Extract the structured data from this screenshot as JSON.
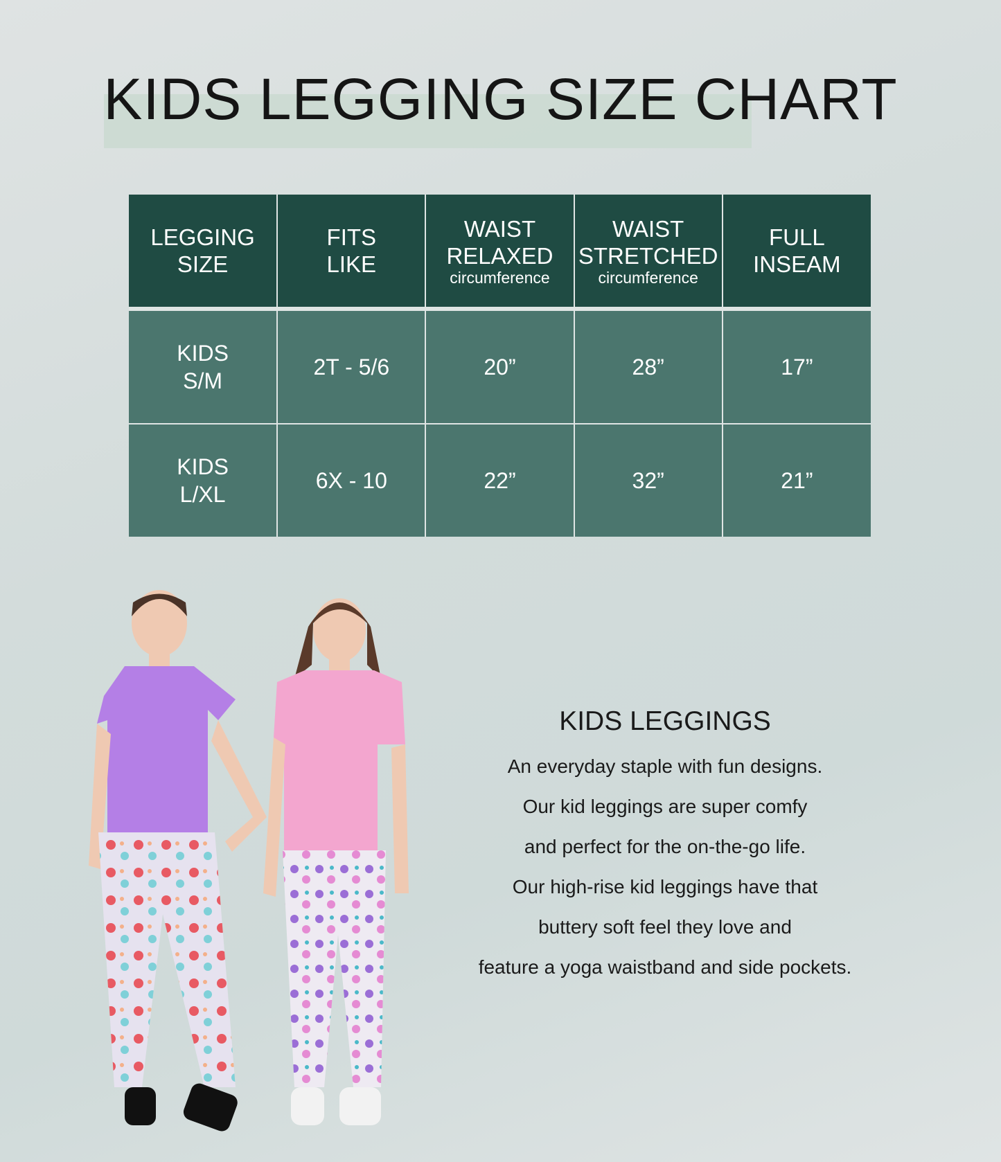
{
  "title": "KIDS LEGGING SIZE CHART",
  "table": {
    "headers": [
      {
        "main1": "LEGGING",
        "main2": "SIZE",
        "sub": ""
      },
      {
        "main1": "FITS",
        "main2": "LIKE",
        "sub": ""
      },
      {
        "main1": "WAIST",
        "main2": "RELAXED",
        "sub": "circumference"
      },
      {
        "main1": "WAIST",
        "main2": "STRETCHED",
        "sub": "circumference"
      },
      {
        "main1": "FULL",
        "main2": "INSEAM",
        "sub": ""
      }
    ],
    "rows": [
      {
        "size1": "KIDS",
        "size2": "S/M",
        "fits": "2T - 5/6",
        "waist_relaxed": "20”",
        "waist_stretched": "28”",
        "inseam": "17”"
      },
      {
        "size1": "KIDS",
        "size2": "L/XL",
        "fits": "6X - 10",
        "waist_relaxed": "22”",
        "waist_stretched": "32”",
        "inseam": "21”"
      }
    ],
    "colors": {
      "header": "#1f4b43",
      "row": "#4b766e"
    }
  },
  "description": {
    "heading": "KIDS LEGGINGS",
    "lines": [
      "An everyday staple with fun designs.",
      "Our kid leggings are super comfy",
      "and perfect for the on-the-go life.",
      "Our high-rise kid leggings have that",
      "buttery soft feel they love and",
      "feature a yoga waistband and side pockets."
    ]
  }
}
